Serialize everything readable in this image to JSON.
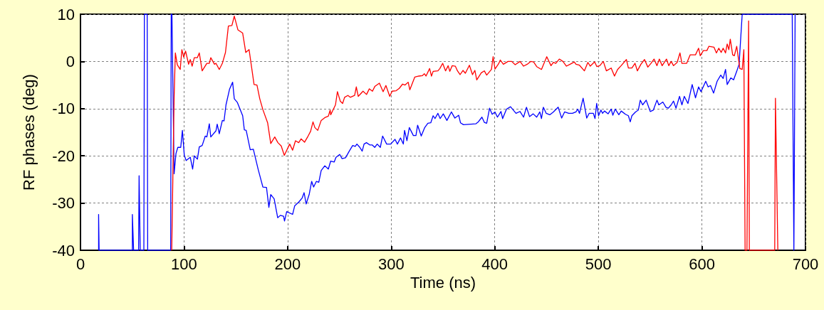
{
  "chart_data": {
    "type": "line",
    "xlabel": "Time (ns)",
    "ylabel": "RF phases (deg)",
    "xlim": [
      0,
      700
    ],
    "xticks": [
      0,
      100,
      200,
      300,
      400,
      500,
      600,
      700
    ],
    "ylim": [
      -40,
      10
    ],
    "yticks": [
      -40,
      -30,
      -20,
      -10,
      0,
      10
    ],
    "grid": true,
    "line_style": "solid",
    "marker": "none",
    "series": [
      {
        "color": "#0000ff",
        "x": [
          17.5,
          17.5,
          18,
          50.1,
          50.1,
          51.3,
          56.1,
          56.6,
          57.7,
          61.2,
          61.7,
          64.4,
          64.9,
          87.1,
          87.6,
          88.3,
          90.4,
          92.2,
          94,
          96.8,
          98.4,
          100.2,
          102,
          106,
          108.3,
          109.9,
          112.9,
          114.7,
          117.5,
          120.5,
          122,
          124.4,
          125.8,
          130.8,
          132,
          134,
          137,
          138.6,
          140.5,
          143.9,
          146.9,
          148.5,
          151.5,
          156.6,
          158.2,
          160,
          163.9,
          166.9,
          171.5,
          176.1,
          179.6,
          181.9,
          183.7,
          187,
          190.4,
          193,
          196.1,
          197,
          199.1,
          204.8,
          206.8,
          210.7,
          214.1,
          215.9,
          217.9,
          220.9,
          223.2,
          225.1,
          227.8,
          230.1,
          232.4,
          235.9,
          239.3,
          241.6,
          245,
          246.7,
          250.3,
          252.6,
          255.9,
          259.5,
          262.8,
          265.3,
          266.9,
          269.7,
          272,
          273.8,
          276.1,
          279.5,
          281.8,
          284.1,
          286.5,
          289.5,
          291.7,
          295.6,
          299.5,
          303.7,
          306,
          309,
          311.7,
          312.9,
          315.2,
          317.5,
          321.4,
          323.9,
          325.5,
          329,
          332.4,
          335.4,
          338.2,
          340.5,
          342.3,
          345.1,
          347.3,
          350.3,
          353.8,
          358.1,
          361.5,
          365.2,
          366.9,
          369.8,
          381.8,
          384.1,
          387.6,
          389.9,
          392.2,
          395,
          397.5,
          400.2,
          402.6,
          406,
          407.6,
          411.3,
          415.2,
          420.5,
          424.4,
          427.8,
          430.6,
          433.6,
          437.1,
          440.5,
          443.5,
          445.1,
          446.9,
          449.7,
          453.1,
          456.6,
          461.2,
          464.6,
          467.4,
          471.5,
          475,
          478.4,
          480.2,
          481.8,
          485.3,
          488.8,
          491.1,
          495.2,
          496.8,
          498.4,
          500.2,
          502.5,
          504.1,
          505.9,
          509.4,
          512.4,
          514,
          516.3,
          519.8,
          522.1,
          526.2,
          529,
          530.8,
          532.4,
          535.9,
          538.6,
          540.5,
          542.8,
          546.2,
          550.1,
          553.1,
          556.6,
          558.4,
          562.3,
          565.3,
          567.6,
          570.3,
          572.6,
          575,
          578.4,
          580.7,
          583,
          586.5,
          590.6,
          593.8,
          596.8,
          599.1,
          603.7,
          606,
          608.3,
          611.3,
          614.7,
          618.2,
          620.5,
          622.8,
          624.4,
          627.9,
          630.6,
          633.6,
          635.9,
          638.9,
          687.2,
          688.8,
          690
        ],
        "values": [
          -40,
          -32.4,
          -40,
          -40,
          -32.4,
          -40,
          -40,
          -24.2,
          -40,
          -40,
          10,
          10,
          -40,
          -40,
          10,
          10,
          -23.8,
          -19.5,
          -18.2,
          -18.2,
          -14.6,
          -19.8,
          -21,
          -20.3,
          -22.8,
          -20,
          -20.7,
          -18.1,
          -17.8,
          -15.8,
          -16,
          -13.2,
          -16,
          -14.7,
          -13.3,
          -15.3,
          -12.5,
          -12.6,
          -9.2,
          -5.9,
          -4.4,
          -7.9,
          -8.7,
          -11.5,
          -14.5,
          -14.6,
          -18.7,
          -18.6,
          -22.8,
          -26.6,
          -26.7,
          -30.9,
          -28.2,
          -29.1,
          -33.1,
          -32.6,
          -32.8,
          -33.8,
          -31.8,
          -32.4,
          -30.6,
          -29.8,
          -28.9,
          -27.8,
          -30.2,
          -28.1,
          -25.4,
          -26.6,
          -25.4,
          -25.6,
          -23.1,
          -22.1,
          -22.8,
          -21.1,
          -21.3,
          -20.3,
          -19.7,
          -20.6,
          -20.4,
          -19,
          -17.8,
          -18,
          -17.5,
          -18.2,
          -19,
          -17.5,
          -17.2,
          -17.7,
          -17.7,
          -18.2,
          -17.5,
          -18.2,
          -15.8,
          -17.5,
          -17.5,
          -16.5,
          -17.5,
          -16.2,
          -17.5,
          -14.6,
          -16.8,
          -14,
          -15.7,
          -15.7,
          -13.5,
          -15.8,
          -14,
          -13.1,
          -13,
          -11.5,
          -12.1,
          -11,
          -12.1,
          -11.1,
          -12.5,
          -10.7,
          -12,
          -11.4,
          -13,
          -13.4,
          -13.2,
          -12.8,
          -11.8,
          -12.9,
          -13.1,
          -9.9,
          -11.2,
          -10.7,
          -11.8,
          -10.6,
          -12.1,
          -10.1,
          -9.6,
          -11,
          -10.6,
          -11.8,
          -9.7,
          -11.7,
          -11.1,
          -11.8,
          -10.7,
          -12.1,
          -9.7,
          -11,
          -11.3,
          -10.7,
          -9.7,
          -12,
          -10.7,
          -11,
          -11,
          -10.7,
          -10.1,
          -11,
          -7.8,
          -12,
          -11,
          -11,
          -12.1,
          -8.9,
          -11.5,
          -10.3,
          -11,
          -10.5,
          -11.1,
          -10.1,
          -11.4,
          -10.1,
          -11.3,
          -10.5,
          -11.2,
          -11.5,
          -12.8,
          -11.5,
          -10.7,
          -10.3,
          -8.2,
          -9.2,
          -8.2,
          -10.6,
          -10.3,
          -8.2,
          -9.2,
          -8.6,
          -9.7,
          -9.9,
          -9.2,
          -8.4,
          -9.9,
          -7.4,
          -9.2,
          -7.4,
          -8.9,
          -4.9,
          -7.7,
          -5.4,
          -6.4,
          -4.2,
          -5.4,
          -5.1,
          -6.7,
          -4.2,
          -2.9,
          -3.6,
          -1.7,
          -4.9,
          -3.5,
          -3.9,
          -2.1,
          -0.6,
          10,
          10,
          -40,
          10
        ]
      },
      {
        "color": "#ff0000",
        "x": [
          88.1,
          90.4,
          91.6,
          93.5,
          96.3,
          97.9,
          99.7,
          101.5,
          104.4,
          106,
          107.8,
          109.9,
          112.9,
          114.7,
          117.5,
          122,
          124.4,
          125.8,
          129.4,
          130.8,
          134,
          137,
          140,
          142.8,
          146.2,
          148.5,
          152,
          156.6,
          159.6,
          162.8,
          167.6,
          170.4,
          173.1,
          176.1,
          180.7,
          183.7,
          187.6,
          190.6,
          193.8,
          196.8,
          202,
          204.8,
          207.6,
          210.7,
          213,
          216.4,
          219.8,
          222.2,
          224.5,
          226.3,
          229.1,
          232.4,
          235.9,
          239.3,
          241.1,
          241.6,
          246.2,
          248.1,
          250.8,
          253.1,
          255,
          258.2,
          260.5,
          264.7,
          266.3,
          268.2,
          272.8,
          276.2,
          278.9,
          281.9,
          284.2,
          288.6,
          292.2,
          294.9,
          298.6,
          300.9,
          304.8,
          307.8,
          311,
          313.4,
          316.4,
          318,
          322.8,
          326.7,
          330.2,
          332,
          333.6,
          337.1,
          338.9,
          340.5,
          345.1,
          347,
          349.7,
          352.5,
          355,
          356.6,
          358.9,
          361.9,
          364,
          366.5,
          369.3,
          371.6,
          375.5,
          378.5,
          380.8,
          382.6,
          387,
          389.9,
          392.2,
          396.8,
          398.4,
          400.2,
          403.7,
          405.3,
          408.3,
          412.8,
          416.3,
          419.7,
          424.4,
          427.8,
          431.3,
          434.7,
          437.5,
          440.5,
          445.1,
          450.2,
          454.3,
          456.6,
          458.9,
          462.3,
          465.8,
          469.2,
          472.7,
          476.8,
          478.4,
          481.8,
          486.5,
          489.9,
          492.2,
          496.4,
          498.6,
          501.4,
          504.8,
          507.8,
          512.4,
          515.6,
          518.6,
          522,
          527.1,
          529,
          532.4,
          535.4,
          537.7,
          541.1,
          544.6,
          547.8,
          550.8,
          553.8,
          556.6,
          558.9,
          561.6,
          565.8,
          568,
          570.3,
          572.6,
          576.1,
          578.8,
          580.7,
          585.3,
          588.7,
          593.8,
          596.8,
          598.4,
          601.4,
          604.8,
          606.7,
          611.7,
          614,
          616.3,
          618.6,
          620.5,
          622.8,
          624.4,
          626,
          627.4,
          629.7,
          631.3,
          633.6,
          636.6,
          638.9,
          640.5,
          641.7,
          643.5,
          645.1,
          645.8,
          670.3,
          671,
          673.3
        ],
        "values": [
          -40,
          -7.7,
          1.8,
          -0.7,
          -1.7,
          2.5,
          0.9,
          2.2,
          -0.6,
          0.4,
          -1,
          0.8,
          0.8,
          1.8,
          -2,
          -0.4,
          -0.4,
          0.8,
          -0.6,
          -0.4,
          -1.7,
          -0.4,
          1.9,
          7.5,
          7.6,
          9.6,
          6.7,
          6,
          1.9,
          2.5,
          -4.9,
          -5,
          -7.9,
          -10.2,
          -13,
          -17.4,
          -16,
          -17.2,
          -17.9,
          -19.9,
          -17.5,
          -18.8,
          -16.8,
          -17.2,
          -16.4,
          -17.1,
          -15.8,
          -14.8,
          -12.8,
          -14,
          -14.6,
          -12.5,
          -11.9,
          -11.6,
          -10.3,
          -11.3,
          -9.2,
          -6.4,
          -8.4,
          -8.9,
          -7.6,
          -7.2,
          -7.6,
          -7.2,
          -5.4,
          -7.4,
          -6.3,
          -7,
          -5.8,
          -6.3,
          -5.3,
          -4.6,
          -6.4,
          -5.1,
          -7.4,
          -6.3,
          -6.2,
          -5.7,
          -4.8,
          -5,
          -4.4,
          -6,
          -3.3,
          -3.1,
          -3,
          -2.6,
          -3.1,
          -1.5,
          -3.1,
          -2.1,
          -2,
          -1.5,
          -0.4,
          -2,
          -0.9,
          -2.1,
          -0.9,
          -1,
          -2,
          -2.8,
          -1.9,
          -2.5,
          -0.8,
          -2.8,
          -1.9,
          -3.9,
          -2.4,
          -2,
          -2.9,
          -1.7,
          1,
          -1.6,
          -0.5,
          0.3,
          -0.6,
          0,
          0,
          -0.7,
          0,
          -1,
          -0.6,
          0,
          -0.1,
          -1.1,
          -1.7,
          1,
          -0.9,
          -0.2,
          -0.4,
          0.5,
          0,
          -1,
          -0.6,
          -0.1,
          -0.6,
          -0.8,
          -2,
          -0.2,
          -1,
          -0.1,
          -1.1,
          -0.9,
          0,
          -2,
          -1.4,
          -3.1,
          -1.7,
          -0.9,
          0.4,
          -1.4,
          -1.4,
          -0.4,
          -2,
          -0.6,
          0.4,
          -1.2,
          -0.4,
          0.5,
          -0.9,
          0.5,
          -0.9,
          0.5,
          -0.9,
          0,
          -0.9,
          -0.2,
          1.8,
          -0.4,
          -0.4,
          1.4,
          1.4,
          2.8,
          1.2,
          2.3,
          2.3,
          3.2,
          3,
          1.8,
          2.8,
          1.9,
          2.8,
          1.8,
          3.7,
          2.5,
          4.7,
          1.4,
          1.2,
          3.2,
          -1.5,
          -1.7,
          2.5,
          -40,
          -40,
          8.6,
          -40,
          -40,
          -7.8,
          -40
        ]
      }
    ]
  }
}
